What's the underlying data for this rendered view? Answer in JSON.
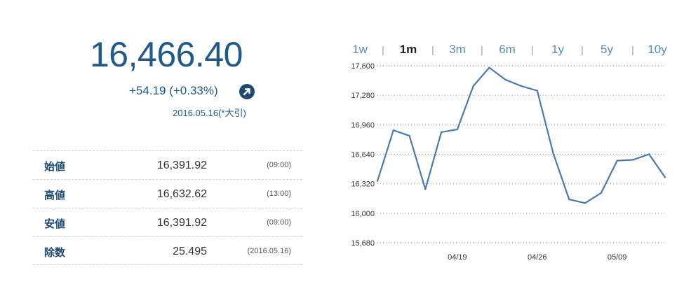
{
  "price": {
    "value": "16,466.40",
    "change": "+54.19 (+0.33%)",
    "date": "2016.05.16(*大引)",
    "up_icon": "arrow-up-right-circle",
    "color": "#1f5a8a"
  },
  "details": [
    {
      "label": "始値",
      "value": "16,391.92",
      "note": "(09:00)"
    },
    {
      "label": "高値",
      "value": "16,632.62",
      "note": "(13:00)"
    },
    {
      "label": "安値",
      "value": "16,391.92",
      "note": "(09:00)"
    },
    {
      "label": "除数",
      "value": "25.495",
      "note": "(2016.05.16)"
    }
  ],
  "range_tabs": [
    {
      "label": "1w",
      "active": false
    },
    {
      "label": "1m",
      "active": true
    },
    {
      "label": "3m",
      "active": false
    },
    {
      "label": "6m",
      "active": false
    },
    {
      "label": "1y",
      "active": false
    },
    {
      "label": "5y",
      "active": false
    },
    {
      "label": "10y",
      "active": false
    }
  ],
  "range_separator": "|",
  "chart_data": {
    "type": "line",
    "title": "",
    "xlabel": "",
    "ylabel": "",
    "ylim": [
      15680,
      17600
    ],
    "yticks": [
      15680,
      16000,
      16320,
      16640,
      16960,
      17280,
      17600
    ],
    "ytick_labels": [
      "15,680",
      "16,000",
      "16,320",
      "16,640",
      "16,960",
      "17,280",
      "17,600"
    ],
    "xtick_labels": [
      {
        "label": "04/19",
        "index": 5
      },
      {
        "label": "04/26",
        "index": 10
      },
      {
        "label": "05/09",
        "index": 15
      }
    ],
    "grid": "horizontal-dotted",
    "line_color": "#4a7ab0",
    "series": [
      {
        "values": [
          16350,
          16900,
          16840,
          16260,
          16880,
          16910,
          17380,
          17580,
          17450,
          17380,
          17330,
          16650,
          16150,
          16110,
          16220,
          16570,
          16580,
          16640,
          16390
        ]
      }
    ]
  }
}
